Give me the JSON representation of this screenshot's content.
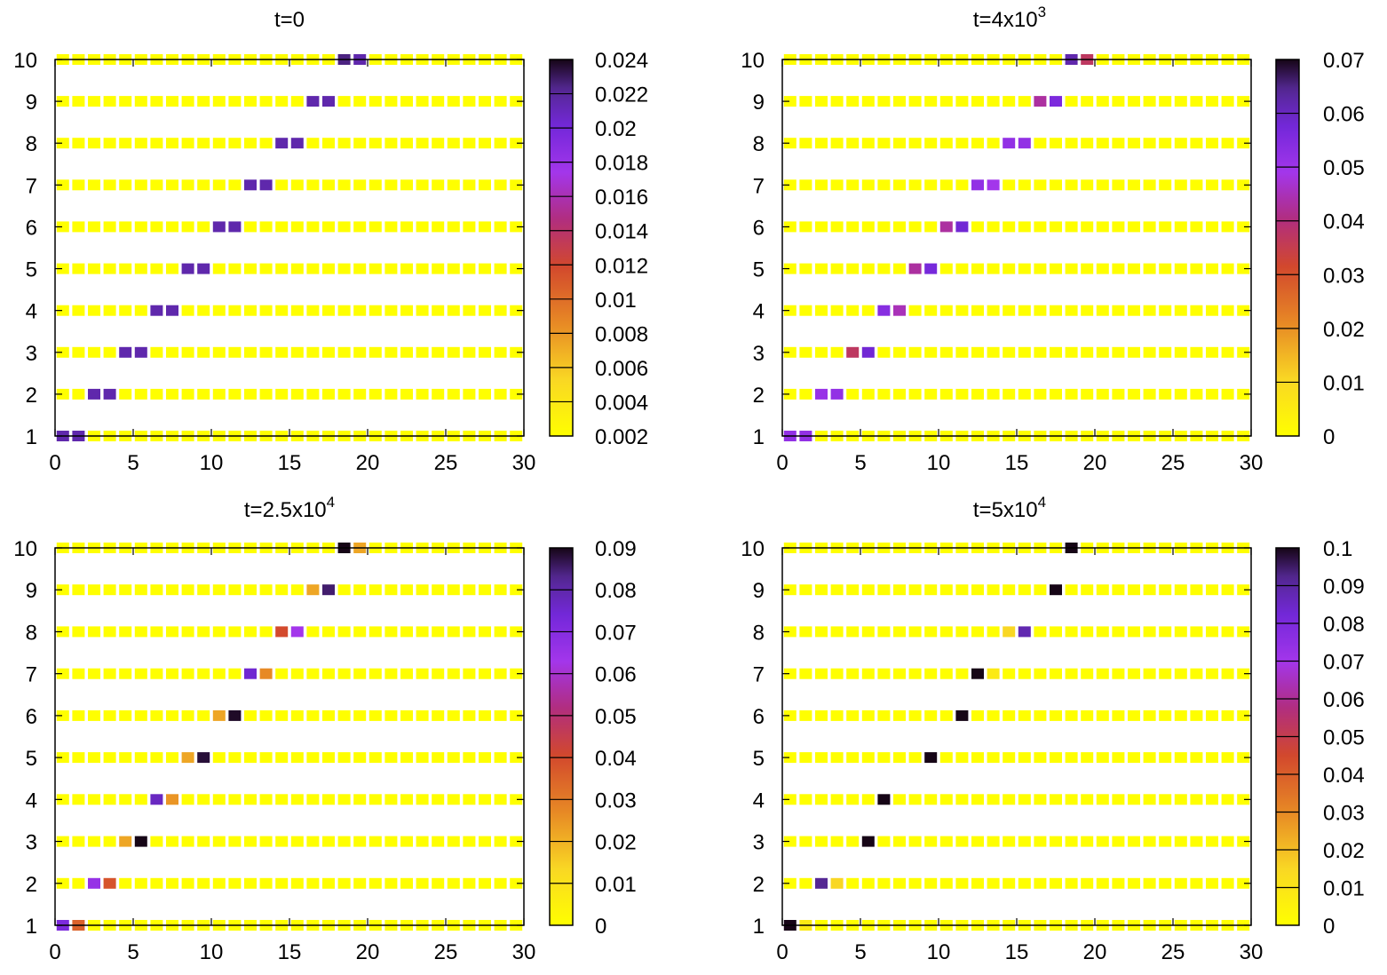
{
  "chart_data": [
    {
      "type": "heatmap",
      "title": "t=0",
      "title_base": "t=0",
      "title_sup": "",
      "xlabel": "",
      "ylabel": "",
      "xlim": [
        0,
        30
      ],
      "ylim": [
        1,
        10
      ],
      "x_ticks": [
        "0",
        "5",
        "10",
        "15",
        "20",
        "25",
        "30"
      ],
      "y_ticks": [
        "1",
        "2",
        "3",
        "4",
        "5",
        "6",
        "7",
        "8",
        "9",
        "10"
      ],
      "colorbar_range": [
        0.002,
        0.024
      ],
      "colorbar_ticks": [
        "0.002",
        "0.004",
        "0.006",
        "0.008",
        "0.01",
        "0.012",
        "0.014",
        "0.016",
        "0.018",
        "0.02",
        "0.022",
        "0.024"
      ],
      "background_value": 0.002,
      "highlighted_cells": [
        {
          "row": 1,
          "x": 1,
          "value": 0.0215
        },
        {
          "row": 1,
          "x": 2,
          "value": 0.0215
        },
        {
          "row": 2,
          "x": 3,
          "value": 0.0215
        },
        {
          "row": 2,
          "x": 4,
          "value": 0.0215
        },
        {
          "row": 3,
          "x": 5,
          "value": 0.0215
        },
        {
          "row": 3,
          "x": 6,
          "value": 0.0215
        },
        {
          "row": 4,
          "x": 7,
          "value": 0.0215
        },
        {
          "row": 4,
          "x": 8,
          "value": 0.0215
        },
        {
          "row": 5,
          "x": 9,
          "value": 0.0215
        },
        {
          "row": 5,
          "x": 10,
          "value": 0.0215
        },
        {
          "row": 6,
          "x": 11,
          "value": 0.0215
        },
        {
          "row": 6,
          "x": 12,
          "value": 0.0215
        },
        {
          "row": 7,
          "x": 13,
          "value": 0.0215
        },
        {
          "row": 7,
          "x": 14,
          "value": 0.0215
        },
        {
          "row": 8,
          "x": 15,
          "value": 0.0215
        },
        {
          "row": 8,
          "x": 16,
          "value": 0.0215
        },
        {
          "row": 9,
          "x": 17,
          "value": 0.0215
        },
        {
          "row": 9,
          "x": 18,
          "value": 0.0215
        },
        {
          "row": 10,
          "x": 19,
          "value": 0.0225
        },
        {
          "row": 10,
          "x": 20,
          "value": 0.0215
        }
      ]
    },
    {
      "type": "heatmap",
      "title": "t=4x10^3",
      "title_base": "t=4x10",
      "title_sup": "3",
      "xlabel": "",
      "ylabel": "",
      "xlim": [
        0,
        30
      ],
      "ylim": [
        1,
        10
      ],
      "x_ticks": [
        "0",
        "5",
        "10",
        "15",
        "20",
        "25",
        "30"
      ],
      "y_ticks": [
        "1",
        "2",
        "3",
        "4",
        "5",
        "6",
        "7",
        "8",
        "9",
        "10"
      ],
      "colorbar_range": [
        0,
        0.07
      ],
      "colorbar_ticks": [
        "0",
        "0.01",
        "0.02",
        "0.03",
        "0.04",
        "0.05",
        "0.06",
        "0.07"
      ],
      "background_value": 0,
      "highlighted_cells": [
        {
          "row": 1,
          "x": 1,
          "value": 0.052
        },
        {
          "row": 1,
          "x": 2,
          "value": 0.052
        },
        {
          "row": 2,
          "x": 3,
          "value": 0.051
        },
        {
          "row": 2,
          "x": 4,
          "value": 0.052
        },
        {
          "row": 3,
          "x": 5,
          "value": 0.037
        },
        {
          "row": 3,
          "x": 6,
          "value": 0.058
        },
        {
          "row": 4,
          "x": 7,
          "value": 0.054
        },
        {
          "row": 4,
          "x": 8,
          "value": 0.045
        },
        {
          "row": 5,
          "x": 9,
          "value": 0.043
        },
        {
          "row": 5,
          "x": 10,
          "value": 0.057
        },
        {
          "row": 6,
          "x": 11,
          "value": 0.043
        },
        {
          "row": 6,
          "x": 12,
          "value": 0.058
        },
        {
          "row": 7,
          "x": 13,
          "value": 0.052
        },
        {
          "row": 7,
          "x": 14,
          "value": 0.049
        },
        {
          "row": 8,
          "x": 15,
          "value": 0.052
        },
        {
          "row": 8,
          "x": 16,
          "value": 0.052
        },
        {
          "row": 9,
          "x": 17,
          "value": 0.043
        },
        {
          "row": 9,
          "x": 18,
          "value": 0.056
        },
        {
          "row": 10,
          "x": 19,
          "value": 0.062
        },
        {
          "row": 10,
          "x": 20,
          "value": 0.037
        }
      ]
    },
    {
      "type": "heatmap",
      "title": "t=2.5x10^4",
      "title_base": "t=2.5x10",
      "title_sup": "4",
      "xlabel": "",
      "ylabel": "",
      "xlim": [
        0,
        30
      ],
      "ylim": [
        1,
        10
      ],
      "x_ticks": [
        "0",
        "5",
        "10",
        "15",
        "20",
        "25",
        "30"
      ],
      "y_ticks": [
        "1",
        "2",
        "3",
        "4",
        "5",
        "6",
        "7",
        "8",
        "9",
        "10"
      ],
      "colorbar_range": [
        0,
        0.09
      ],
      "colorbar_ticks": [
        "0",
        "0.01",
        "0.02",
        "0.03",
        "0.04",
        "0.05",
        "0.06",
        "0.07",
        "0.08",
        "0.09"
      ],
      "background_value": 0,
      "highlighted_cells": [
        {
          "row": 1,
          "x": 1,
          "value": 0.072
        },
        {
          "row": 1,
          "x": 2,
          "value": 0.035
        },
        {
          "row": 2,
          "x": 3,
          "value": 0.066
        },
        {
          "row": 2,
          "x": 4,
          "value": 0.038
        },
        {
          "row": 3,
          "x": 5,
          "value": 0.022
        },
        {
          "row": 3,
          "x": 6,
          "value": 0.09
        },
        {
          "row": 4,
          "x": 7,
          "value": 0.077
        },
        {
          "row": 4,
          "x": 8,
          "value": 0.025
        },
        {
          "row": 5,
          "x": 9,
          "value": 0.022
        },
        {
          "row": 5,
          "x": 10,
          "value": 0.088
        },
        {
          "row": 6,
          "x": 11,
          "value": 0.022
        },
        {
          "row": 6,
          "x": 12,
          "value": 0.089
        },
        {
          "row": 7,
          "x": 13,
          "value": 0.075
        },
        {
          "row": 7,
          "x": 14,
          "value": 0.027
        },
        {
          "row": 8,
          "x": 15,
          "value": 0.04
        },
        {
          "row": 8,
          "x": 16,
          "value": 0.063
        },
        {
          "row": 9,
          "x": 17,
          "value": 0.022
        },
        {
          "row": 9,
          "x": 18,
          "value": 0.085
        },
        {
          "row": 10,
          "x": 19,
          "value": 0.09
        },
        {
          "row": 10,
          "x": 20,
          "value": 0.022
        }
      ]
    },
    {
      "type": "heatmap",
      "title": "t=5x10^4",
      "title_base": "t=5x10",
      "title_sup": "4",
      "xlabel": "",
      "ylabel": "",
      "xlim": [
        0,
        30
      ],
      "ylim": [
        1,
        10
      ],
      "x_ticks": [
        "0",
        "5",
        "10",
        "15",
        "20",
        "25",
        "30"
      ],
      "y_ticks": [
        "1",
        "2",
        "3",
        "4",
        "5",
        "6",
        "7",
        "8",
        "9",
        "10"
      ],
      "colorbar_range": [
        0,
        0.1
      ],
      "colorbar_ticks": [
        "0",
        "0.01",
        "0.02",
        "0.03",
        "0.04",
        "0.05",
        "0.06",
        "0.07",
        "0.08",
        "0.09",
        "0.1"
      ],
      "background_value": 0,
      "highlighted_cells": [
        {
          "row": 1,
          "x": 1,
          "value": 0.1
        },
        {
          "row": 1,
          "x": 2,
          "value": 0.008
        },
        {
          "row": 2,
          "x": 3,
          "value": 0.092
        },
        {
          "row": 2,
          "x": 4,
          "value": 0.015
        },
        {
          "row": 3,
          "x": 6,
          "value": 0.1
        },
        {
          "row": 4,
          "x": 7,
          "value": 0.1
        },
        {
          "row": 5,
          "x": 10,
          "value": 0.1
        },
        {
          "row": 6,
          "x": 12,
          "value": 0.1
        },
        {
          "row": 7,
          "x": 13,
          "value": 0.1
        },
        {
          "row": 7,
          "x": 14,
          "value": 0.008
        },
        {
          "row": 8,
          "x": 15,
          "value": 0.015
        },
        {
          "row": 8,
          "x": 16,
          "value": 0.088
        },
        {
          "row": 9,
          "x": 18,
          "value": 0.1
        },
        {
          "row": 10,
          "x": 19,
          "value": 0.1
        }
      ]
    }
  ]
}
